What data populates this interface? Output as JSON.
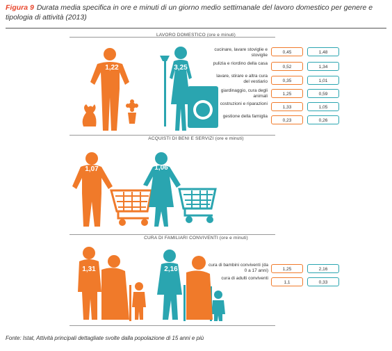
{
  "caption": {
    "figure_label": "Figura 9",
    "text": "Durata media specifica in ore e minuti di un giorno medio settimanale del lavoro domestico per genere e tipologia di attività (2013)"
  },
  "source": "Fonte: Istat, Attività principali dettagliate svolte dalla popolazione di 15 anni e più",
  "colors": {
    "male": "#f07a2a",
    "female": "#2aa5b0"
  },
  "chart_data": [
    {
      "type": "table",
      "title": "LAVORO DOMESTICO (ore e minuti)",
      "totals": {
        "male": "1,22",
        "female": "3,25"
      },
      "rows": [
        {
          "label": "cucinare, lavare stoviglie e stoviglie",
          "male": "0,45",
          "female": "1,48"
        },
        {
          "label": "pulizia e riordino della casa",
          "male": "0,52",
          "female": "1,34"
        },
        {
          "label": "lavare, stirare e altra cura del vestiario",
          "male": "0,35",
          "female": "1,01"
        },
        {
          "label": "giardinaggio, cura degli animali",
          "male": "1,25",
          "female": "0,59"
        },
        {
          "label": "costruzioni e riparazioni",
          "male": "1,33",
          "female": "1,05"
        },
        {
          "label": "gestione della famiglia",
          "male": "0,23",
          "female": "0,26"
        }
      ]
    },
    {
      "type": "table",
      "title": "ACQUISTI DI BENI E SERVIZI (ore e minuti)",
      "totals": {
        "male": "1,07",
        "female": "1,06"
      },
      "rows": []
    },
    {
      "type": "table",
      "title": "CURA DI FAMILIARI CONVIVENTI (ore e minuti)",
      "totals": {
        "male": "1,31",
        "female": "2,16"
      },
      "rows": [
        {
          "label": "cura di bambini conviventi (da 0 a 17 anni)",
          "male": "1,25",
          "female": "2,16"
        },
        {
          "label": "cura di adulti conviventi",
          "male": "1,1",
          "female": "0,33"
        }
      ]
    }
  ]
}
